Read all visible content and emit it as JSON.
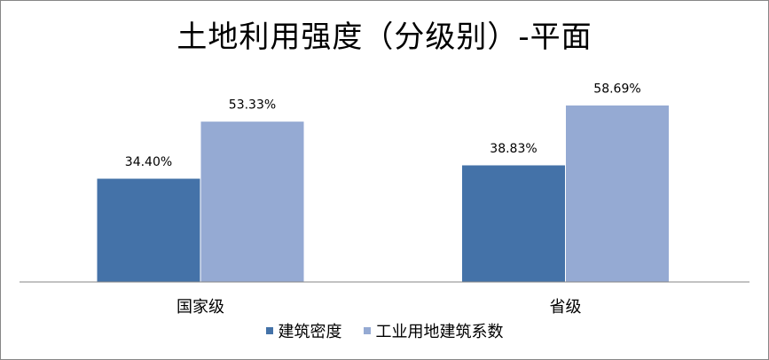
{
  "chart_data": {
    "type": "bar",
    "title": "土地利用强度（分级别）-平面",
    "categories": [
      "国家级",
      "省级"
    ],
    "series": [
      {
        "name": "建筑密度",
        "values": [
          34.4,
          38.83
        ],
        "labels": [
          "34.40%",
          "38.83%"
        ],
        "color": "#4472A8"
      },
      {
        "name": "工业用地建筑系数",
        "values": [
          53.33,
          58.69
        ],
        "labels": [
          "53.33%",
          "58.69%"
        ],
        "color": "#95AAD3"
      }
    ],
    "unit": "%",
    "ylim": [
      0,
      66
    ],
    "grid": false,
    "legend_position": "bottom"
  }
}
